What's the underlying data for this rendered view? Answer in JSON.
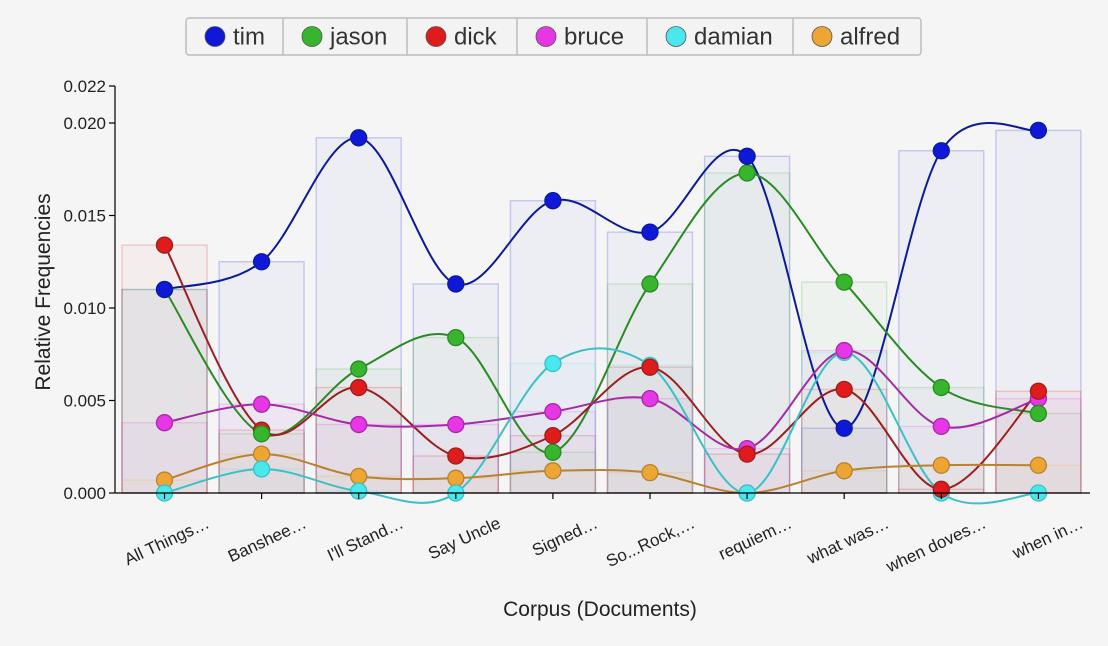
{
  "chart_data": {
    "type": "line",
    "title": "",
    "xlabel": "Corpus (Documents)",
    "ylabel": "Relative Frequencies",
    "ylim": [
      0,
      0.022
    ],
    "y_ticks": [
      "0.000",
      "0.005",
      "0.010",
      "0.015",
      "0.020",
      "0.022"
    ],
    "grid": false,
    "legend_position": "top-center",
    "bars_behind_lines": true,
    "categories": [
      "All Things…",
      "Banshee…",
      "I'll Stand…",
      "Say Uncle",
      "Signed…",
      "So...Rock,…",
      "requiem…",
      "what was…",
      "when doves…",
      "when in…"
    ],
    "series": [
      {
        "name": "tim",
        "color": "#1018d8",
        "line_color": "#0a1a9a",
        "values": [
          0.011,
          0.0125,
          0.0192,
          0.0113,
          0.0158,
          0.0141,
          0.0182,
          0.0035,
          0.0185,
          0.0196
        ]
      },
      {
        "name": "jason",
        "color": "#37b52c",
        "line_color": "#2a8a26",
        "values": [
          0.011,
          0.0032,
          0.0067,
          0.0084,
          0.0022,
          0.0113,
          0.0173,
          0.0114,
          0.0057,
          0.0043
        ]
      },
      {
        "name": "dick",
        "color": "#e01b1b",
        "line_color": "#9b1f1f",
        "values": [
          0.0134,
          0.0034,
          0.0057,
          0.002,
          0.0031,
          0.0068,
          0.0021,
          0.0056,
          0.0002,
          0.0055
        ]
      },
      {
        "name": "bruce",
        "color": "#e636e6",
        "line_color": "#a52aa5",
        "values": [
          0.0038,
          0.0048,
          0.0037,
          0.0037,
          0.0044,
          0.0051,
          0.0024,
          0.0077,
          0.0036,
          0.0051
        ]
      },
      {
        "name": "damian",
        "color": "#4ae8ec",
        "line_color": "#3ac0c6",
        "values": [
          0.0,
          0.0013,
          0.0001,
          0.0,
          0.007,
          0.0069,
          0.0,
          0.0076,
          0.0,
          0.0
        ]
      },
      {
        "name": "alfred",
        "color": "#eda533",
        "line_color": "#b88230",
        "values": [
          0.0007,
          0.0021,
          0.0009,
          0.0008,
          0.0012,
          0.0011,
          0.0,
          0.0012,
          0.0015,
          0.0015
        ]
      }
    ]
  }
}
